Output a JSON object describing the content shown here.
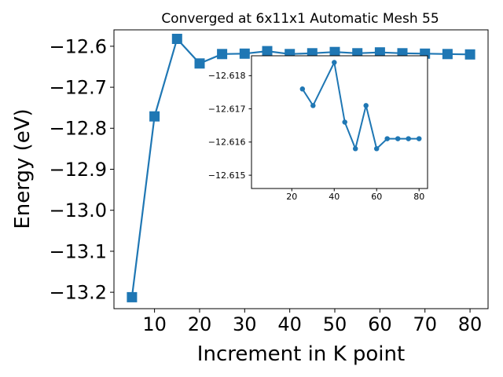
{
  "chart_data": [
    {
      "type": "line",
      "title": "Converged at 6x11x1 Automatic Mesh 55",
      "xlabel": "Increment in K point",
      "ylabel": "Energy (eV)",
      "x": [
        5,
        10,
        15,
        20,
        25,
        30,
        35,
        40,
        45,
        50,
        55,
        60,
        65,
        70,
        75,
        80
      ],
      "series": [
        {
          "values": [
            -13.212,
            -12.771,
            -12.582,
            -12.642,
            -12.619,
            -12.618,
            -12.612,
            -12.619,
            -12.617,
            -12.614,
            -12.617,
            -12.615,
            -12.617,
            -12.618,
            -12.619,
            -12.62
          ],
          "color": "#1f77b4",
          "marker": "square"
        }
      ],
      "xlim": [
        1,
        84
      ],
      "ylim": [
        -13.24,
        -12.56
      ],
      "xticks": [
        10,
        20,
        30,
        40,
        50,
        60,
        70,
        80
      ],
      "xtick_labels": [
        "10",
        "20",
        "30",
        "40",
        "50",
        "60",
        "70",
        "80"
      ],
      "yticks": [
        -13.2,
        -13.1,
        -13.0,
        -12.9,
        -12.8,
        -12.7,
        -12.6
      ],
      "ytick_labels": [
        "−13.2",
        "−13.1",
        "−13.0",
        "−12.9",
        "−12.8",
        "−12.7",
        "−12.6"
      ],
      "grid": false
    },
    {
      "type": "line",
      "title": "",
      "xlabel": "",
      "ylabel": "",
      "x": [
        25,
        30,
        40,
        45,
        50,
        55,
        60,
        65,
        70,
        75,
        80
      ],
      "series": [
        {
          "values": [
            -12.6176,
            -12.6171,
            -12.6184,
            -12.6166,
            -12.6158,
            -12.6171,
            -12.6158,
            -12.6161,
            -12.6161,
            -12.6161,
            -12.6161
          ],
          "color": "#1f77b4",
          "marker": "circle"
        }
      ],
      "xlim": [
        1,
        84
      ],
      "ylim": [
        -12.6146,
        -12.6186
      ],
      "xticks": [
        20,
        40,
        60,
        80
      ],
      "xtick_labels": [
        "20",
        "40",
        "60",
        "80"
      ],
      "yticks": [
        -12.618,
        -12.617,
        -12.616,
        -12.615
      ],
      "ytick_labels": [
        "−12.618",
        "−12.617",
        "−12.616",
        "−12.615"
      ],
      "grid": false
    }
  ]
}
